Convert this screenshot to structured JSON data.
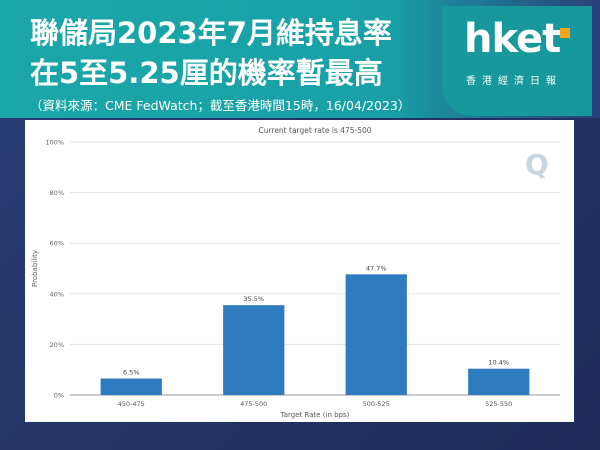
{
  "header": {
    "title_line1": "聯儲局2023年7月維持息率",
    "title_line2": "在5至5.25厘的機率暫最高",
    "source": "（資料來源：CME FedWatch；截至香港時間15時，16/04/2023）"
  },
  "logo": {
    "brand": "hket",
    "subtitle": "香港經濟日報",
    "accent_color": "#f4a523"
  },
  "colors": {
    "header_teal": "#1aa7a9",
    "background_navy": "#243466",
    "bar": "#2e7bbf"
  },
  "chart_data": {
    "type": "bar",
    "title": "Current target rate is 475-500",
    "xlabel": "Target Rate (in bps)",
    "ylabel": "Probability",
    "categories": [
      "450-475",
      "475-500",
      "500-525",
      "525-550"
    ],
    "values": [
      6.5,
      35.5,
      47.7,
      10.4
    ],
    "data_labels": [
      "6.5%",
      "35.5%",
      "47.7%",
      "10.4%"
    ],
    "ylim": [
      0,
      100
    ],
    "yticks": [
      0,
      20,
      40,
      60,
      80,
      100
    ],
    "ytick_labels": [
      "0%",
      "20%",
      "40%",
      "60%",
      "80%",
      "100%"
    ],
    "grid": true,
    "watermark_icon": "q-logo-icon"
  }
}
